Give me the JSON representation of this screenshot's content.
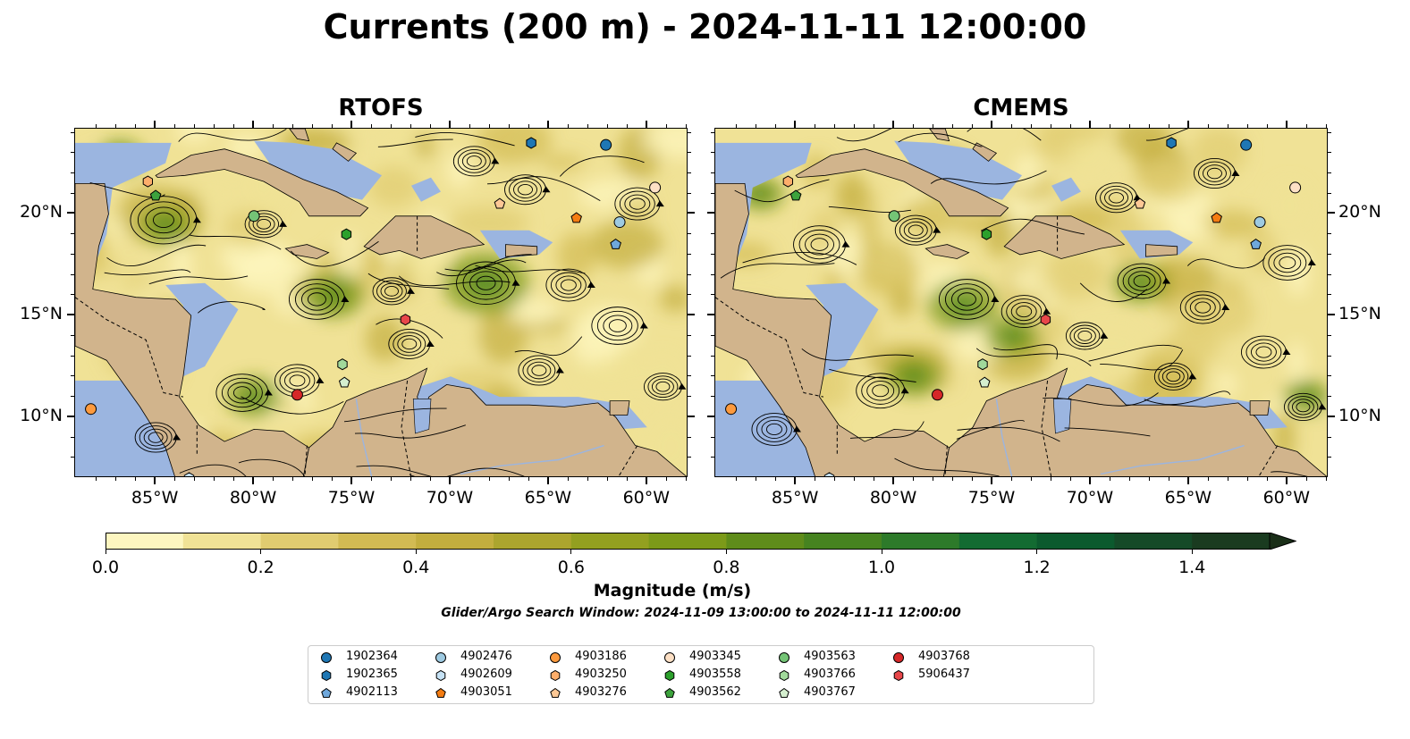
{
  "title": "Currents (200 m) - 2024-11-11 12:00:00",
  "panels": [
    {
      "title": "RTOFS"
    },
    {
      "title": "CMEMS"
    }
  ],
  "lon_ticks": [
    "85°W",
    "80°W",
    "75°W",
    "70°W",
    "65°W",
    "60°W"
  ],
  "lat_ticks": [
    "20°N",
    "15°N",
    "10°N"
  ],
  "colorbar": {
    "label": "Magnitude (m/s)",
    "ticks": [
      "0.0",
      "0.2",
      "0.4",
      "0.6",
      "0.8",
      "1.0",
      "1.2",
      "1.4"
    ],
    "range": [
      0,
      1.5
    ],
    "extend": "max",
    "colors": [
      "#fdf6c0",
      "#f0e296",
      "#e0cc70",
      "#d2bb53",
      "#c3ae3e",
      "#aca52e",
      "#93a020",
      "#7c9a19",
      "#5f8c1a",
      "#468320",
      "#2d7a2a",
      "#136b32",
      "#0c5a2e",
      "#154a28",
      "#1a3b20",
      "#1a2f18"
    ]
  },
  "map_colors": {
    "ocean_shallow": "#9bb5e0",
    "land": "#d1b48c",
    "stream": "#000000"
  },
  "search_window": "Glider/Argo Search Window: 2024-11-09 13:00:00 to 2024-11-11 12:00:00",
  "legend": [
    {
      "id": "1902364",
      "marker": "circle",
      "color": "#1f77b4"
    },
    {
      "id": "1902365",
      "marker": "hexagon",
      "color": "#1f77b4"
    },
    {
      "id": "4902113",
      "marker": "pentagon",
      "color": "#6fa8dc"
    },
    {
      "id": "4902476",
      "marker": "circle",
      "color": "#9ecae1"
    },
    {
      "id": "4902609",
      "marker": "hexagon",
      "color": "#c6e2f5"
    },
    {
      "id": "4903051",
      "marker": "pentagon",
      "color": "#f47c12"
    },
    {
      "id": "4903186",
      "marker": "circle",
      "color": "#fd9a3e"
    },
    {
      "id": "4903250",
      "marker": "hexagon",
      "color": "#fdae6b"
    },
    {
      "id": "4903276",
      "marker": "pentagon",
      "color": "#fdc895"
    },
    {
      "id": "4903345",
      "marker": "circle",
      "color": "#fde0c5"
    },
    {
      "id": "4903558",
      "marker": "hexagon",
      "color": "#2ca02c"
    },
    {
      "id": "4903562",
      "marker": "pentagon",
      "color": "#3da33d"
    },
    {
      "id": "4903563",
      "marker": "circle",
      "color": "#74c476"
    },
    {
      "id": "4903766",
      "marker": "hexagon",
      "color": "#a1d99b"
    },
    {
      "id": "4903767",
      "marker": "pentagon",
      "color": "#d5efcf"
    },
    {
      "id": "4903768",
      "marker": "circle",
      "color": "#d62728"
    },
    {
      "id": "5906437",
      "marker": "hexagon",
      "color": "#e8474a"
    }
  ],
  "floats": [
    {
      "id": "1902364",
      "lon": -62.1,
      "lat": 23.4
    },
    {
      "id": "1902365",
      "lon": -65.9,
      "lat": 23.5
    },
    {
      "id": "4902113",
      "lon": -61.6,
      "lat": 18.5
    },
    {
      "id": "4902476",
      "lon": -61.4,
      "lat": 19.6
    },
    {
      "id": "4902609",
      "lon": -83.3,
      "lat": 7.0
    },
    {
      "id": "4903051",
      "lon": -63.6,
      "lat": 19.8
    },
    {
      "id": "4903186",
      "lon": -88.3,
      "lat": 10.4
    },
    {
      "id": "4903250",
      "lon": -85.4,
      "lat": 21.6
    },
    {
      "id": "4903276",
      "lon": -67.5,
      "lat": 20.5
    },
    {
      "id": "4903345",
      "lon": -59.6,
      "lat": 21.3
    },
    {
      "id": "4903558",
      "lon": -75.3,
      "lat": 19.0
    },
    {
      "id": "4903562",
      "lon": -85.0,
      "lat": 20.9
    },
    {
      "id": "4903563",
      "lon": -80.0,
      "lat": 19.9
    },
    {
      "id": "4903766",
      "lon": -75.5,
      "lat": 12.6
    },
    {
      "id": "4903767",
      "lon": -75.4,
      "lat": 11.7
    },
    {
      "id": "4903768",
      "lon": -77.8,
      "lat": 11.1
    },
    {
      "id": "5906437",
      "lon": -72.3,
      "lat": 14.8
    }
  ]
}
